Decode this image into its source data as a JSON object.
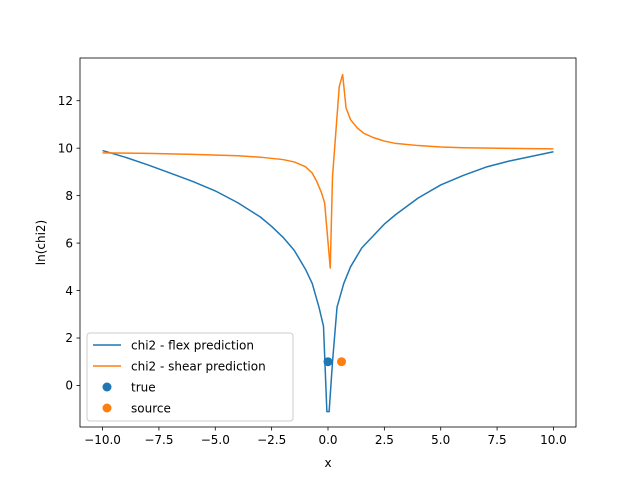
{
  "chart_data": {
    "type": "line",
    "title": "",
    "xlabel": "x",
    "ylabel": "ln(chi2)",
    "xlim": [
      -11.0,
      11.0
    ],
    "ylim": [
      -1.75,
      13.8
    ],
    "xticks": [
      -10.0,
      -7.5,
      -5.0,
      -2.5,
      0.0,
      2.5,
      5.0,
      7.5,
      10.0
    ],
    "xtick_labels": [
      "−10.0",
      "−7.5",
      "−5.0",
      "−2.5",
      "0.0",
      "2.5",
      "5.0",
      "7.5",
      "10.0"
    ],
    "yticks": [
      0,
      2,
      4,
      6,
      8,
      10,
      12
    ],
    "ytick_labels": [
      "0",
      "2",
      "4",
      "6",
      "8",
      "10",
      "12"
    ],
    "grid": false,
    "legend_position": "lower-left",
    "series": [
      {
        "name": "chi2 - flex prediction",
        "color": "#1f77b4",
        "kind": "line",
        "x": [
          -10.0,
          -9.0,
          -8.0,
          -7.0,
          -6.0,
          -5.0,
          -4.0,
          -3.0,
          -2.5,
          -2.0,
          -1.5,
          -1.0,
          -0.7,
          -0.4,
          -0.2,
          -0.05,
          0.05,
          0.2,
          0.4,
          0.7,
          1.0,
          1.5,
          2.0,
          2.5,
          3.0,
          4.0,
          5.0,
          6.0,
          7.0,
          8.0,
          9.0,
          10.0
        ],
        "y": [
          9.9,
          9.62,
          9.3,
          8.95,
          8.6,
          8.2,
          7.7,
          7.1,
          6.7,
          6.25,
          5.7,
          4.9,
          4.3,
          3.3,
          2.5,
          -1.1,
          -1.1,
          1.0,
          3.3,
          4.3,
          5.0,
          5.8,
          6.3,
          6.8,
          7.2,
          7.9,
          8.45,
          8.85,
          9.2,
          9.45,
          9.65,
          9.85
        ]
      },
      {
        "name": "chi2 - shear prediction",
        "color": "#ff7f0e",
        "kind": "line",
        "x": [
          -10.0,
          -8.0,
          -6.0,
          -4.0,
          -3.0,
          -2.0,
          -1.5,
          -1.0,
          -0.7,
          -0.5,
          -0.3,
          -0.15,
          0.1,
          0.2,
          0.35,
          0.5,
          0.65,
          0.8,
          1.0,
          1.3,
          1.6,
          2.0,
          2.5,
          3.0,
          4.0,
          5.0,
          6.0,
          8.0,
          10.0
        ],
        "y": [
          9.8,
          9.78,
          9.74,
          9.68,
          9.62,
          9.52,
          9.42,
          9.22,
          8.95,
          8.6,
          8.15,
          7.7,
          4.95,
          8.8,
          10.7,
          12.6,
          13.1,
          11.7,
          11.2,
          10.85,
          10.62,
          10.45,
          10.3,
          10.2,
          10.11,
          10.05,
          10.02,
          9.99,
          9.97
        ]
      },
      {
        "name": "true",
        "color": "#1f77b4",
        "kind": "scatter",
        "x": [
          0.0
        ],
        "y": [
          1.0
        ]
      },
      {
        "name": "source",
        "color": "#ff7f0e",
        "kind": "scatter",
        "x": [
          0.6
        ],
        "y": [
          1.0
        ]
      }
    ]
  }
}
